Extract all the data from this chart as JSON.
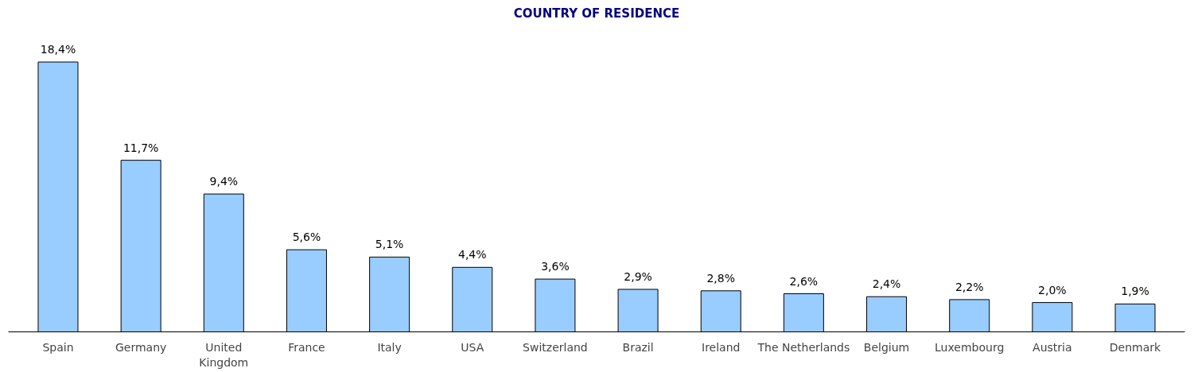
{
  "chart_data": {
    "type": "bar",
    "title": "COUNTRY OF RESIDENCE",
    "categories": [
      "Spain",
      "Germany",
      "United\nKingdom",
      "France",
      "Italy",
      "USA",
      "Switzerland",
      "Brazil",
      "Ireland",
      "The Netherlands",
      "Belgium",
      "Luxembourg",
      "Austria",
      "Denmark"
    ],
    "values": [
      18.4,
      11.7,
      9.4,
      5.6,
      5.1,
      4.4,
      3.6,
      2.9,
      2.8,
      2.6,
      2.4,
      2.2,
      2.0,
      1.9
    ],
    "value_labels": [
      "18,4%",
      "11,7%",
      "9,4%",
      "5,6%",
      "5,1%",
      "4,4%",
      "3,6%",
      "2,9%",
      "2,8%",
      "2,6%",
      "2,4%",
      "2,2%",
      "2,0%",
      "1,9%"
    ],
    "color": "#99ccff",
    "grid": false
  }
}
